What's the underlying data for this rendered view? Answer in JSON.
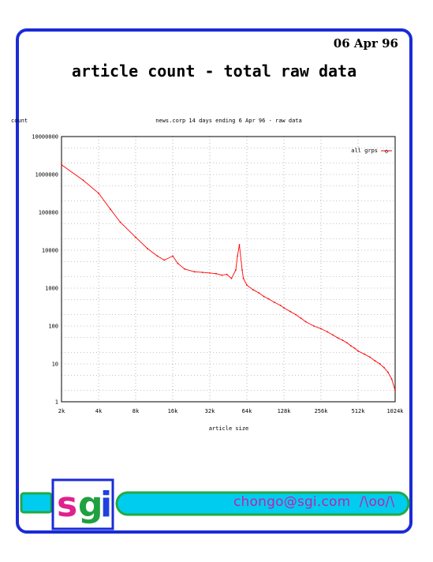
{
  "header": {
    "date": "06 Apr 96",
    "title": "article count - total raw data"
  },
  "footer": {
    "logo_text": "sgi",
    "email": "chongo@sgi.com",
    "signature": "/\\oo/\\"
  },
  "colors": {
    "frame": "#1a2bd6",
    "banner_fill": "#00ccf0",
    "banner_border": "#22aa44",
    "series": "#ff0000",
    "grid": "#888888"
  },
  "chart_data": {
    "type": "line",
    "title": "news.corp 14 days ending 6 Apr 96 - raw data",
    "xlabel": "article size",
    "ylabel": "count",
    "x_scale": "log2",
    "y_scale": "log10",
    "xlim": [
      2048,
      1048576
    ],
    "ylim": [
      1,
      10000000
    ],
    "x_ticks": [
      "2k",
      "4k",
      "8k",
      "16k",
      "32k",
      "64k",
      "128k",
      "256k",
      "512k",
      "1024k"
    ],
    "y_ticks": [
      "1",
      "10",
      "100",
      "1000",
      "10000",
      "100000",
      "1000000",
      "10000000"
    ],
    "grid": true,
    "legend_position": "top-right",
    "series": [
      {
        "name": "all grps",
        "x": [
          2048,
          3072,
          4096,
          5120,
          6144,
          8192,
          10240,
          12288,
          14000,
          16384,
          18000,
          20480,
          24576,
          28672,
          32768,
          36864,
          40960,
          45056,
          49152,
          53248,
          55000,
          57000,
          60000,
          61440,
          65536,
          73728,
          81920,
          90112,
          98304,
          110000,
          122880,
          131072,
          147456,
          163840,
          180224,
          196608,
          229376,
          262144,
          294912,
          327680,
          360448,
          393216,
          425984,
          458752,
          491520,
          524288,
          589824,
          655360,
          720896,
          786432,
          851968,
          917504,
          983040,
          1048576
        ],
        "y": [
          1800000,
          700000,
          320000,
          120000,
          55000,
          22000,
          11000,
          7000,
          5500,
          7000,
          4500,
          3200,
          2700,
          2600,
          2500,
          2400,
          2200,
          2300,
          1800,
          3000,
          7000,
          14000,
          3000,
          1800,
          1200,
          900,
          750,
          600,
          520,
          420,
          350,
          300,
          240,
          200,
          160,
          130,
          100,
          85,
          70,
          58,
          48,
          42,
          36,
          30,
          26,
          22,
          18,
          15,
          12,
          10,
          8,
          6,
          4,
          2
        ]
      }
    ]
  }
}
